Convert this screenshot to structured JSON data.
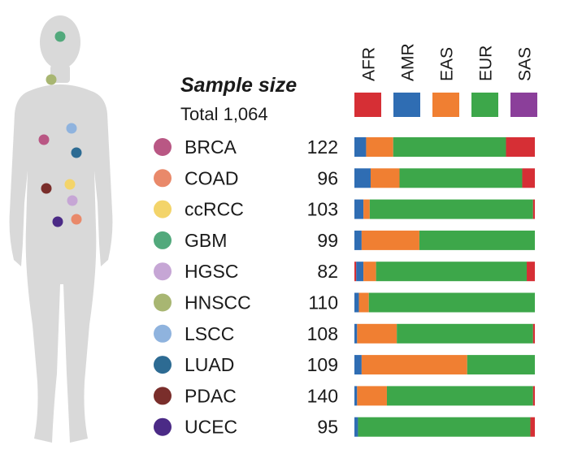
{
  "chart_data": {
    "type": "bar",
    "subtype": "stacked-horizontal-proportion",
    "title": "Sample size",
    "total_label": "Total 1,064",
    "legend": [
      {
        "name": "AFR",
        "color": "#d62f35"
      },
      {
        "name": "AMR",
        "color": "#2f6db3"
      },
      {
        "name": "EAS",
        "color": "#f07f32"
      },
      {
        "name": "EUR",
        "color": "#3da74a"
      },
      {
        "name": "SAS",
        "color": "#8b3f9a"
      }
    ],
    "series_order": [
      "AFR",
      "AMR",
      "EAS",
      "EUR",
      "SAS"
    ],
    "xlim": [
      0,
      1
    ],
    "rows": [
      {
        "name": "BRCA",
        "n": "122",
        "dot_color": "#b95784",
        "AFR": 0.0,
        "AMR": 0.065,
        "EAS": 0.15,
        "EUR": 0.625,
        "SAS": 0.0,
        "AFR_tail": 0.16
      },
      {
        "name": "COAD",
        "n": "96",
        "dot_color": "#e9896a",
        "AFR": 0.0,
        "AMR": 0.09,
        "EAS": 0.16,
        "EUR": 0.68,
        "SAS": 0.0,
        "AFR_tail": 0.07
      },
      {
        "name": "ccRCC",
        "n": "103",
        "dot_color": "#f3d46a",
        "AFR": 0.0,
        "AMR": 0.05,
        "EAS": 0.035,
        "EUR": 0.905,
        "SAS": 0.0,
        "AFR_tail": 0.01
      },
      {
        "name": "GBM",
        "n": "99",
        "dot_color": "#52a97c",
        "AFR": 0.0,
        "AMR": 0.04,
        "EAS": 0.32,
        "EUR": 0.64,
        "SAS": 0.0,
        "AFR_tail": 0.0
      },
      {
        "name": "HGSC",
        "n": "82",
        "dot_color": "#c6a6d5",
        "AFR": 0.01,
        "AMR": 0.04,
        "EAS": 0.07,
        "EUR": 0.835,
        "SAS": 0.0,
        "AFR_tail": 0.045
      },
      {
        "name": "HNSCC",
        "n": "110",
        "dot_color": "#a8b672",
        "AFR": 0.0,
        "AMR": 0.025,
        "EAS": 0.055,
        "EUR": 0.92,
        "SAS": 0.0,
        "AFR_tail": 0.0
      },
      {
        "name": "LSCC",
        "n": "108",
        "dot_color": "#8fb3de",
        "AFR": 0.0,
        "AMR": 0.015,
        "EAS": 0.22,
        "EUR": 0.755,
        "SAS": 0.0,
        "AFR_tail": 0.01
      },
      {
        "name": "LUAD",
        "n": "109",
        "dot_color": "#2d6b93",
        "AFR": 0.0,
        "AMR": 0.04,
        "EAS": 0.585,
        "EUR": 0.375,
        "SAS": 0.0,
        "AFR_tail": 0.0
      },
      {
        "name": "PDAC",
        "n": "140",
        "dot_color": "#7a2e2b",
        "AFR": 0.0,
        "AMR": 0.015,
        "EAS": 0.165,
        "EUR": 0.81,
        "SAS": 0.0,
        "AFR_tail": 0.01
      },
      {
        "name": "UCEC",
        "n": "95",
        "dot_color": "#4b2a86",
        "AFR": 0.0,
        "AMR": 0.02,
        "EAS": 0.0,
        "EUR": 0.955,
        "SAS": 0.0,
        "AFR_tail": 0.025
      }
    ]
  },
  "body_dots": [
    {
      "tissue": "GBM",
      "color": "#52a97c"
    },
    {
      "tissue": "HNSCC",
      "color": "#a8b672"
    },
    {
      "tissue": "BRCA",
      "color": "#b95784"
    },
    {
      "tissue": "LSCC",
      "color": "#8fb3de"
    },
    {
      "tissue": "LUAD",
      "color": "#2d6b93"
    },
    {
      "tissue": "PDAC",
      "color": "#7a2e2b"
    },
    {
      "tissue": "ccRCC",
      "color": "#f3d46a"
    },
    {
      "tissue": "HGSC",
      "color": "#c6a6d5"
    },
    {
      "tissue": "UCEC",
      "color": "#4b2a86"
    },
    {
      "tissue": "COAD",
      "color": "#e9896a"
    }
  ]
}
